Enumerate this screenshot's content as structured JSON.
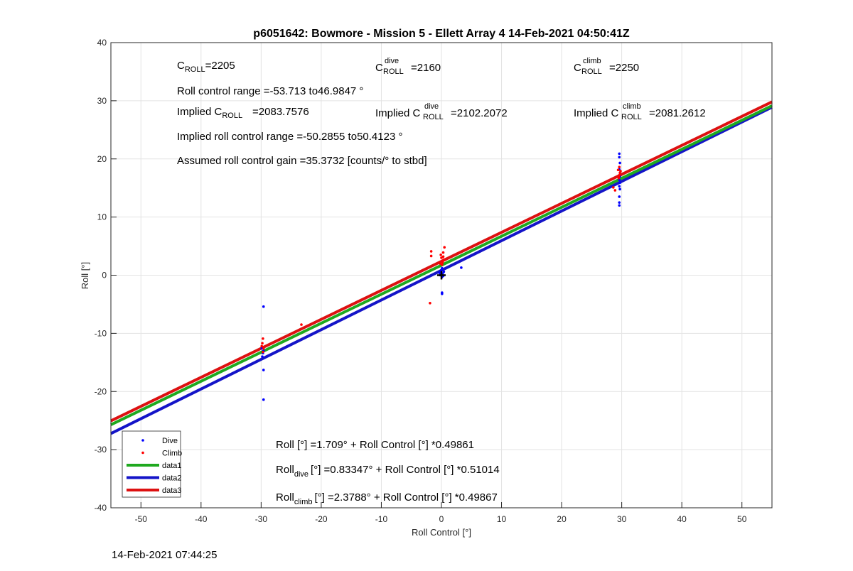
{
  "chart_data": {
    "type": "scatter",
    "title": "p6051642: Bowmore - Mission 5 - Ellett Array 4 14-Feb-2021 04:50:41Z",
    "xlabel": "Roll Control [°]",
    "ylabel": "Roll [°]",
    "xlim": [
      -55,
      55
    ],
    "ylim": [
      -40,
      40
    ],
    "xticks": [
      -50,
      -40,
      -30,
      -20,
      -10,
      0,
      10,
      20,
      30,
      40,
      50
    ],
    "yticks": [
      -40,
      -30,
      -20,
      -10,
      0,
      10,
      20,
      30,
      40
    ],
    "grid": true,
    "legend_position": "bottom-left",
    "series": [
      {
        "name": "Dive",
        "kind": "points",
        "color": "#0000ff",
        "points": [
          [
            -29.6,
            -5.4
          ],
          [
            -29.6,
            -13.0
          ],
          [
            -29.8,
            -14.0
          ],
          [
            -29.6,
            -16.3
          ],
          [
            -29.6,
            -21.4
          ],
          [
            -29.9,
            -12.6
          ],
          [
            -29.7,
            -13.4
          ],
          [
            0.0,
            0.1
          ],
          [
            0.2,
            0.3
          ],
          [
            -0.2,
            0.0
          ],
          [
            0.1,
            -0.3
          ],
          [
            0.4,
            0.6
          ],
          [
            -0.3,
            0.4
          ],
          [
            0.0,
            0.9
          ],
          [
            0.1,
            1.2
          ],
          [
            0.3,
            -0.1
          ],
          [
            -0.1,
            0.5
          ],
          [
            0.1,
            -3.0
          ],
          [
            0.1,
            -3.2
          ],
          [
            3.3,
            1.3
          ],
          [
            29.6,
            12.0
          ],
          [
            29.6,
            12.5
          ],
          [
            29.6,
            13.5
          ],
          [
            29.7,
            14.8
          ],
          [
            29.6,
            15.3
          ],
          [
            29.7,
            15.9
          ],
          [
            29.6,
            16.4
          ],
          [
            29.7,
            17.0
          ],
          [
            29.6,
            18.2
          ],
          [
            29.7,
            19.3
          ],
          [
            29.6,
            20.3
          ],
          [
            29.6,
            20.9
          ]
        ]
      },
      {
        "name": "Climb",
        "kind": "points",
        "color": "#ff0000",
        "points": [
          [
            -29.7,
            -10.9
          ],
          [
            -29.8,
            -11.7
          ],
          [
            -29.9,
            -12.2
          ],
          [
            -29.6,
            -12.6
          ],
          [
            -29.7,
            -13.2
          ],
          [
            -23.3,
            -8.5
          ],
          [
            -1.9,
            -4.8
          ],
          [
            -1.7,
            4.1
          ],
          [
            -1.7,
            3.3
          ],
          [
            0.1,
            1.8
          ],
          [
            0.2,
            2.2
          ],
          [
            0.4,
            2.7
          ],
          [
            0.0,
            3.0
          ],
          [
            -0.1,
            3.5
          ],
          [
            0.3,
            3.9
          ],
          [
            0.5,
            4.8
          ],
          [
            0.2,
            2.5
          ],
          [
            -0.2,
            2.0
          ],
          [
            0.3,
            3.2
          ],
          [
            29.5,
            16.7
          ],
          [
            29.6,
            17.2
          ],
          [
            29.7,
            17.6
          ],
          [
            29.4,
            18.1
          ],
          [
            29.6,
            18.6
          ],
          [
            29.5,
            17.0
          ],
          [
            28.6,
            15.1
          ],
          [
            28.9,
            14.6
          ],
          [
            29.8,
            17.9
          ]
        ]
      },
      {
        "name": "data1",
        "kind": "line",
        "color": "#1fa91f",
        "intercept": 1.709,
        "slope": 0.49861
      },
      {
        "name": "data2",
        "kind": "line",
        "color": "#1414c8",
        "intercept": 0.83347,
        "slope": 0.51014
      },
      {
        "name": "data3",
        "kind": "line",
        "color": "#dd1111",
        "intercept": 2.3788,
        "slope": 0.49867
      },
      {
        "name": "",
        "kind": "marker",
        "color": "#000000",
        "points": [
          [
            0.0,
            0.0
          ]
        ]
      }
    ],
    "annotations": {
      "croll": {
        "base": "C",
        "sub": "ROLL",
        "value": "=2205"
      },
      "croll_dive": {
        "base": "C",
        "sub": "ROLL",
        "sup": "dive",
        "value": "=2160"
      },
      "croll_climb": {
        "base": "C",
        "sub": "ROLL",
        "sup": "climb",
        "value": "=2250"
      },
      "roll_range": "Roll control range =-53.713 to46.9847 °",
      "implied_croll": {
        "prefix": "Implied C",
        "sub": "ROLL",
        "value": "=2083.7576"
      },
      "implied_croll_dive": {
        "prefix": "Implied C",
        "sub": "ROLL",
        "sup": "dive",
        "value": "=2102.2072"
      },
      "implied_croll_climb": {
        "prefix": "Implied C",
        "sub": "ROLL",
        "sup": "climb",
        "value": "=2081.2612"
      },
      "implied_range": "Implied roll control range =-50.2855 to50.4123 °",
      "gain": "Assumed roll control gain =35.3732 [counts/° to stbd]",
      "eq_all": "Roll [°] =1.709° + Roll Control [°] *0.49861",
      "eq_dive": {
        "base": "Roll",
        "sub": "dive",
        "rest": "[°] =0.83347° + Roll Control [°] *0.51014"
      },
      "eq_climb": {
        "base": "Roll",
        "sub": "climb",
        "rest": "[°] =2.3788° + Roll Control [°] *0.49867"
      }
    }
  },
  "footer_timestamp": "14-Feb-2021 07:44:25"
}
